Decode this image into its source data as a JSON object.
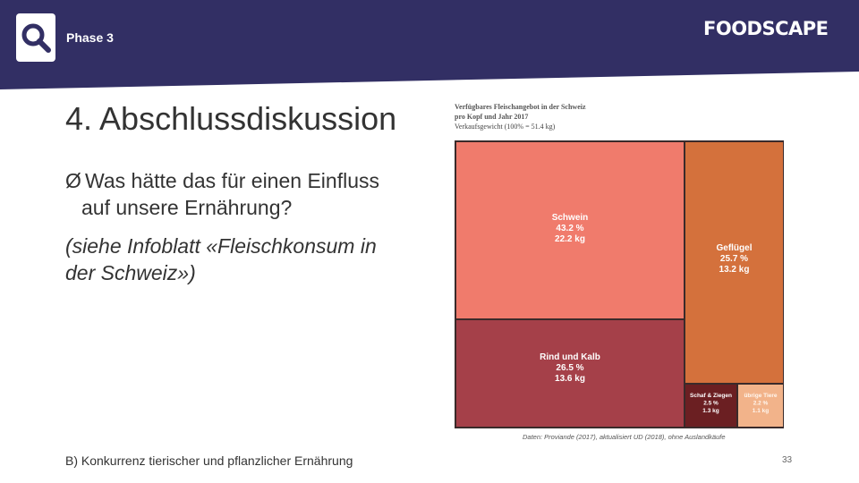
{
  "header": {
    "phase_label": "Phase 3",
    "brand": "FOODSCAPE",
    "band_color": "#322f64",
    "icon": "search-icon"
  },
  "main": {
    "title": "4. Abschlussdiskussion",
    "question_line1": "Was hätte das für einen Einfluss",
    "question_line2": "auf unsere Ernährung?",
    "bullet_glyph": "Ø",
    "reference_line1": "(siehe Infoblatt «Fleischkonsum in",
    "reference_line2": "der Schweiz»)"
  },
  "chart_data": {
    "type": "treemap",
    "title": "Verfügbares Fleischangebot in der Schweiz",
    "subtitle": "pro Kopf und Jahr 2017",
    "note": "Verkaufsgewicht (100% = 51.4 kg)",
    "source": "Daten: Proviande (2017), aktualisiert UD (2018), ohne Auslandkäufe",
    "series": [
      {
        "name": "Schwein",
        "percent_label": "43.2 %",
        "kg_label": "22.2 kg",
        "percent": 43.2,
        "kg": 22.2,
        "color": "#f07b6c"
      },
      {
        "name": "Geflügel",
        "percent_label": "25.7 %",
        "kg_label": "13.2 kg",
        "percent": 25.7,
        "kg": 13.2,
        "color": "#d4713c"
      },
      {
        "name": "Rind und Kalb",
        "percent_label": "26.5 %",
        "kg_label": "13.6 kg",
        "percent": 26.5,
        "kg": 13.6,
        "color": "#a54049"
      },
      {
        "name": "Schaf & Ziegen",
        "percent_label": "2.5 %",
        "kg_label": "1.3 kg",
        "percent": 2.5,
        "kg": 1.3,
        "color": "#6b1f22"
      },
      {
        "name": "übrige Tiere",
        "percent_label": "2.2 %",
        "kg_label": "1.1 kg",
        "percent": 2.2,
        "kg": 1.1,
        "color": "#f2b38a"
      }
    ]
  },
  "footer": {
    "section_text": "B) Konkurrenz tierischer und pflanzlicher Ernährung",
    "page_number": "33"
  }
}
